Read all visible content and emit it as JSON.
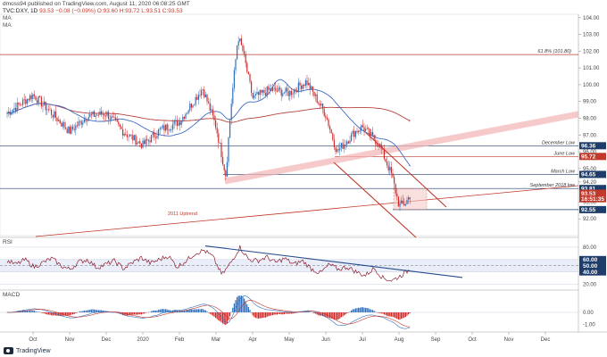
{
  "header": {
    "published_line": "dmoss94 published on TradingView.com, August 11, 2020 06:08:25 GMT",
    "symbol": "TVC:DXY, 1D",
    "last": "93.53",
    "change": "−0.08 (−0.09%)",
    "ohlc": "O:93.60 H:93.72 L:93.51 C:93.53",
    "ma_labels": [
      "MA",
      "MA"
    ]
  },
  "colors": {
    "bull": "#2e6fbe",
    "bear": "#d12a2a",
    "ma_fast": "#3f6bc4",
    "ma_slow": "#b4433e",
    "level_line": "#1f3d6b",
    "red_line": "#c0392b",
    "trend_band": "#f3b4b4"
  },
  "chart_data": [
    {
      "type": "candlestick",
      "title": "",
      "xlabel": "",
      "ylabel": "",
      "ylim": [
        91.0,
        104.2
      ],
      "x_tick_labels": [
        "Oct",
        "Nov",
        "Dec",
        "2020",
        "Feb",
        "Mar",
        "Apr",
        "May",
        "Jun",
        "Jul",
        "Aug",
        "Sep",
        "Oct",
        "Nov",
        "Dec"
      ],
      "y_ticks": [
        "104.00",
        "103.00",
        "102.00",
        "101.00",
        "100.00",
        "99.00",
        "98.00",
        "97.00",
        "96.00",
        "95.00",
        "94.20",
        "93.00",
        "92.00"
      ],
      "close_path": [
        {
          "t": "Sep 2019",
          "v": 98.3
        },
        {
          "t": "Oct 1",
          "v": 99.4
        },
        {
          "t": "Oct 15",
          "v": 98.4
        },
        {
          "t": "Nov 1",
          "v": 97.2
        },
        {
          "t": "Nov 15",
          "v": 98.1
        },
        {
          "t": "Dec 1",
          "v": 98.3
        },
        {
          "t": "Dec 15",
          "v": 97.2
        },
        {
          "t": "Jan 1",
          "v": 96.4
        },
        {
          "t": "Jan 15",
          "v": 97.3
        },
        {
          "t": "Feb 1",
          "v": 97.8
        },
        {
          "t": "Feb 20",
          "v": 99.8
        },
        {
          "t": "Mar 1",
          "v": 97.5
        },
        {
          "t": "Mar 9",
          "v": 94.6
        },
        {
          "t": "Mar 13",
          "v": 98.5
        },
        {
          "t": "Mar 19",
          "v": 102.9
        },
        {
          "t": "Mar 23",
          "v": 102.0
        },
        {
          "t": "Apr 1",
          "v": 99.2
        },
        {
          "t": "Apr 15",
          "v": 99.7
        },
        {
          "t": "May 1",
          "v": 99.5
        },
        {
          "t": "May 15",
          "v": 100.2
        },
        {
          "t": "Jun 1",
          "v": 98.2
        },
        {
          "t": "Jun 10",
          "v": 96.0
        },
        {
          "t": "Jun 25",
          "v": 97.2
        },
        {
          "t": "Jul 1",
          "v": 97.5
        },
        {
          "t": "Jul 15",
          "v": 96.4
        },
        {
          "t": "Jul 25",
          "v": 94.6
        },
        {
          "t": "Aug 1",
          "v": 92.8
        },
        {
          "t": "Aug 6",
          "v": 92.9
        },
        {
          "t": "Aug 11",
          "v": 93.53
        }
      ],
      "annotations": {
        "fib": "61.8% (101.80)",
        "uptrend": "2011 Uptrend",
        "december_low": "December Low",
        "june_low": "June Low",
        "march_low": "March Low",
        "september_low": "September 2018 low"
      },
      "levels": [
        {
          "label": "61.8%",
          "value": 101.8
        },
        {
          "label": "December Low",
          "value": 96.36
        },
        {
          "label": "June Low",
          "value": 95.72
        },
        {
          "label": "March Low",
          "value": 94.65
        },
        {
          "label": "September 2018 low",
          "value": 93.81
        },
        {
          "label": "",
          "value": 92.55
        }
      ],
      "price_badges": [
        {
          "text": "96.36",
          "value": 96.36,
          "color": "#1f3d6b"
        },
        {
          "text": "95.72",
          "value": 95.72,
          "color": "#c0392b"
        },
        {
          "text": "94.65",
          "value": 94.65,
          "color": "#1f3d6b"
        },
        {
          "text": "93.81",
          "value": 93.81,
          "color": "#1f3d6b"
        },
        {
          "text": "93.53",
          "value": 93.53,
          "color": "#c0392b"
        },
        {
          "text": "16:51:35",
          "value": 93.2,
          "color": "#c0392b"
        },
        {
          "text": "92.55",
          "value": 92.55,
          "color": "#1f3d6b"
        }
      ]
    },
    {
      "type": "line",
      "title": "RSI",
      "ylim": [
        15,
        90
      ],
      "y_ticks": [
        "80.00",
        "60.00",
        "50.00",
        "40.00",
        "20.00"
      ],
      "highlight_ticks": [
        "60.00",
        "50.00",
        "40.00"
      ],
      "series": [
        {
          "values": [
            58,
            52,
            60,
            48,
            55,
            62,
            50,
            44,
            56,
            60,
            47,
            52,
            58,
            45,
            55,
            63,
            54,
            60,
            66,
            48,
            58,
            70,
            75,
            64,
            35,
            55,
            80,
            60,
            58,
            64,
            55,
            62,
            52,
            58,
            45,
            38,
            52,
            44,
            48,
            40,
            34,
            46,
            30,
            26,
            34,
            44
          ]
        }
      ]
    },
    {
      "type": "bar",
      "title": "MACD",
      "ylim": [
        -1.5,
        1.5
      ],
      "y_ticks": [
        "0.00",
        "-1.00"
      ]
    }
  ],
  "footer": {
    "brand": "TradingView"
  }
}
